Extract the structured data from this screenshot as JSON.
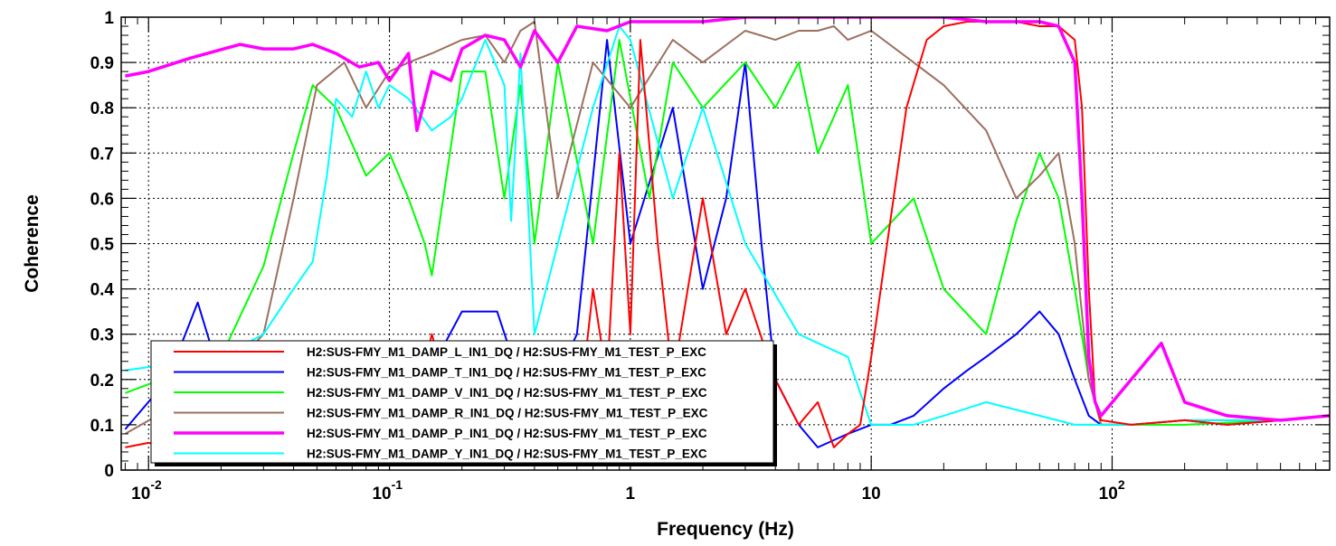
{
  "chart_data": {
    "type": "line",
    "title": "",
    "xlabel": "Frequency (Hz)",
    "ylabel": "Coherence",
    "xscale": "log",
    "xlim": [
      0.0077,
      800
    ],
    "ylim": [
      0,
      1
    ],
    "grid": true,
    "legend_position": "bottom-left",
    "x_ticks": [
      {
        "value": 0.01,
        "base": "10",
        "exp": "-2"
      },
      {
        "value": 0.1,
        "base": "10",
        "exp": "-1"
      },
      {
        "value": 1,
        "base": "1",
        "exp": ""
      },
      {
        "value": 10,
        "base": "10",
        "exp": ""
      },
      {
        "value": 100,
        "base": "10",
        "exp": "2"
      }
    ],
    "y_ticks": [
      {
        "value": 0,
        "label": "0"
      },
      {
        "value": 0.1,
        "label": "0.1"
      },
      {
        "value": 0.2,
        "label": "0.2"
      },
      {
        "value": 0.3,
        "label": "0.3"
      },
      {
        "value": 0.4,
        "label": "0.4"
      },
      {
        "value": 0.5,
        "label": "0.5"
      },
      {
        "value": 0.6,
        "label": "0.6"
      },
      {
        "value": 0.7,
        "label": "0.7"
      },
      {
        "value": 0.8,
        "label": "0.8"
      },
      {
        "value": 0.9,
        "label": "0.9"
      },
      {
        "value": 1,
        "label": "1"
      }
    ],
    "series": [
      {
        "name": "H2:SUS-FMY_M1_DAMP_L_IN1_DQ / H2:SUS-FMY_M1_TEST_P_EXC",
        "color": "#ff0000",
        "x": [
          0.008,
          0.01,
          0.015,
          0.02,
          0.03,
          0.05,
          0.08,
          0.12,
          0.15,
          0.2,
          0.3,
          0.4,
          0.5,
          0.6,
          0.7,
          0.8,
          0.9,
          1.0,
          1.1,
          1.3,
          1.5,
          2,
          2.5,
          3,
          4,
          5,
          6,
          7,
          8,
          9,
          10,
          12,
          14,
          17,
          20,
          25,
          30,
          40,
          50,
          60,
          70,
          75,
          80,
          85,
          90,
          120,
          200,
          300,
          500,
          800
        ],
        "y": [
          0.05,
          0.06,
          0.04,
          0.05,
          0.03,
          0.04,
          0.05,
          0.08,
          0.3,
          0.06,
          0.1,
          0.05,
          0.15,
          0.08,
          0.4,
          0.2,
          0.7,
          0.3,
          0.95,
          0.5,
          0.2,
          0.6,
          0.3,
          0.4,
          0.2,
          0.1,
          0.15,
          0.05,
          0.08,
          0.1,
          0.25,
          0.55,
          0.8,
          0.95,
          0.98,
          0.99,
          0.99,
          0.99,
          0.98,
          0.98,
          0.95,
          0.8,
          0.4,
          0.15,
          0.11,
          0.1,
          0.11,
          0.1,
          0.11,
          0.12
        ]
      },
      {
        "name": "H2:SUS-FMY_M1_DAMP_T_IN1_DQ / H2:SUS-FMY_M1_TEST_P_EXC",
        "color": "#0000ff",
        "x": [
          0.008,
          0.012,
          0.016,
          0.02,
          0.025,
          0.03,
          0.05,
          0.1,
          0.2,
          0.28,
          0.4,
          0.6,
          0.8,
          1.0,
          1.5,
          2,
          2.5,
          3,
          3.5,
          4,
          5,
          6,
          8,
          10,
          12,
          15,
          20,
          25,
          30,
          40,
          50,
          60,
          70,
          80,
          90,
          120,
          200,
          300,
          500,
          800
        ],
        "y": [
          0.09,
          0.2,
          0.37,
          0.2,
          0.28,
          0.05,
          0.04,
          0.05,
          0.35,
          0.35,
          0.1,
          0.3,
          0.95,
          0.5,
          0.8,
          0.4,
          0.6,
          0.9,
          0.5,
          0.2,
          0.1,
          0.05,
          0.08,
          0.1,
          0.1,
          0.12,
          0.18,
          0.22,
          0.25,
          0.3,
          0.35,
          0.3,
          0.2,
          0.12,
          0.1,
          0.1,
          0.11,
          0.1,
          0.11,
          0.12
        ]
      },
      {
        "name": "H2:SUS-FMY_M1_DAMP_V_IN1_DQ / H2:SUS-FMY_M1_TEST_P_EXC",
        "color": "#00ff00",
        "x": [
          0.008,
          0.02,
          0.03,
          0.04,
          0.048,
          0.06,
          0.08,
          0.1,
          0.12,
          0.14,
          0.15,
          0.2,
          0.25,
          0.3,
          0.35,
          0.4,
          0.5,
          0.7,
          0.9,
          1.2,
          1.5,
          2,
          3,
          4,
          5,
          6,
          8,
          10,
          15,
          20,
          30,
          40,
          50,
          60,
          70,
          80,
          90,
          120,
          200,
          500,
          800
        ],
        "y": [
          0.17,
          0.25,
          0.45,
          0.7,
          0.85,
          0.8,
          0.65,
          0.7,
          0.6,
          0.5,
          0.43,
          0.88,
          0.88,
          0.6,
          0.85,
          0.5,
          0.9,
          0.5,
          0.95,
          0.6,
          0.9,
          0.8,
          0.9,
          0.8,
          0.9,
          0.7,
          0.85,
          0.5,
          0.6,
          0.4,
          0.3,
          0.55,
          0.7,
          0.6,
          0.4,
          0.2,
          0.1,
          0.1,
          0.1,
          0.11,
          0.12
        ]
      },
      {
        "name": "H2:SUS-FMY_M1_DAMP_R_IN1_DQ / H2:SUS-FMY_M1_TEST_P_EXC",
        "color": "#9c7060",
        "x": [
          0.008,
          0.02,
          0.03,
          0.04,
          0.05,
          0.065,
          0.08,
          0.1,
          0.12,
          0.15,
          0.2,
          0.25,
          0.3,
          0.35,
          0.4,
          0.5,
          0.7,
          1,
          1.5,
          2,
          3,
          4,
          5,
          6,
          7,
          8,
          10,
          15,
          20,
          30,
          40,
          50,
          60,
          70,
          80,
          90,
          120,
          200,
          500,
          800
        ],
        "y": [
          0.08,
          0.2,
          0.3,
          0.6,
          0.85,
          0.9,
          0.8,
          0.88,
          0.9,
          0.92,
          0.95,
          0.96,
          0.9,
          0.97,
          0.99,
          0.6,
          0.9,
          0.8,
          0.95,
          0.9,
          0.97,
          0.95,
          0.97,
          0.97,
          0.98,
          0.95,
          0.97,
          0.9,
          0.85,
          0.75,
          0.6,
          0.65,
          0.7,
          0.5,
          0.2,
          0.1,
          0.1,
          0.11,
          0.11,
          0.12
        ]
      },
      {
        "name": "H2:SUS-FMY_M1_DAMP_P_IN1_DQ / H2:SUS-FMY_M1_TEST_P_EXC",
        "color": "#ff00ff",
        "x": [
          0.008,
          0.01,
          0.015,
          0.024,
          0.03,
          0.04,
          0.048,
          0.06,
          0.075,
          0.09,
          0.1,
          0.12,
          0.13,
          0.15,
          0.18,
          0.2,
          0.25,
          0.3,
          0.35,
          0.4,
          0.5,
          0.6,
          0.8,
          1,
          1.5,
          2,
          3,
          5,
          10,
          20,
          30,
          40,
          50,
          60,
          70,
          75,
          80,
          85,
          90,
          120,
          160,
          200,
          300,
          500,
          800
        ],
        "y": [
          0.87,
          0.88,
          0.91,
          0.94,
          0.93,
          0.93,
          0.94,
          0.92,
          0.89,
          0.9,
          0.86,
          0.92,
          0.75,
          0.88,
          0.86,
          0.93,
          0.96,
          0.95,
          0.89,
          0.97,
          0.9,
          0.98,
          0.97,
          0.99,
          0.99,
          0.99,
          1.0,
          1.0,
          1.0,
          1.0,
          0.99,
          0.99,
          0.99,
          0.98,
          0.9,
          0.6,
          0.25,
          0.15,
          0.12,
          0.2,
          0.28,
          0.15,
          0.12,
          0.11,
          0.12
        ]
      },
      {
        "name": "H2:SUS-FMY_M1_DAMP_Y_IN1_DQ / H2:SUS-FMY_M1_TEST_P_EXC",
        "color": "#00ffff",
        "x": [
          0.008,
          0.02,
          0.03,
          0.04,
          0.048,
          0.055,
          0.06,
          0.07,
          0.08,
          0.09,
          0.1,
          0.12,
          0.15,
          0.18,
          0.2,
          0.25,
          0.3,
          0.32,
          0.35,
          0.4,
          0.5,
          0.7,
          0.9,
          1,
          1.5,
          2,
          3,
          5,
          8,
          10,
          15,
          20,
          30,
          50,
          70,
          90,
          120,
          200,
          500,
          800
        ],
        "y": [
          0.22,
          0.25,
          0.3,
          0.4,
          0.46,
          0.65,
          0.82,
          0.78,
          0.88,
          0.8,
          0.85,
          0.82,
          0.75,
          0.78,
          0.82,
          0.95,
          0.85,
          0.55,
          0.92,
          0.3,
          0.5,
          0.8,
          0.98,
          0.95,
          0.6,
          0.8,
          0.5,
          0.3,
          0.25,
          0.1,
          0.1,
          0.12,
          0.15,
          0.12,
          0.1,
          0.1,
          0.1,
          0.11,
          0.11,
          0.12
        ]
      }
    ]
  }
}
